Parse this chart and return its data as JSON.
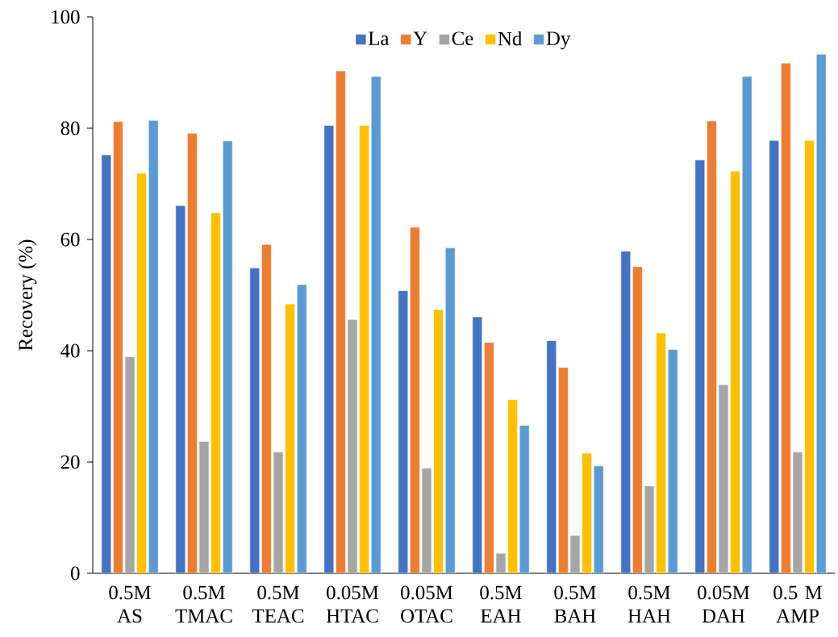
{
  "chart_data": {
    "type": "bar",
    "ylabel": "Recovery (%)",
    "categories": [
      "0.5M AS",
      "0.5M TMAC",
      "0.5M TEAC",
      "0.05M HTAC",
      "0.05M OTAC",
      "0.5M EAH",
      "0.5M BAH",
      "0.5M HAH",
      "0.05M DAH",
      "0.5 M AMP"
    ],
    "series": [
      {
        "name": "La",
        "color": "#4472c4",
        "values": [
          75.2,
          66.1,
          54.9,
          80.5,
          50.8,
          46.1,
          41.8,
          57.9,
          74.3,
          77.8
        ]
      },
      {
        "name": "Y",
        "color": "#ed7d31",
        "values": [
          81.2,
          79.1,
          59.1,
          90.3,
          62.2,
          41.5,
          37.0,
          55.1,
          81.3,
          91.7
        ]
      },
      {
        "name": "Ce",
        "color": "#a5a5a5",
        "values": [
          38.9,
          23.7,
          21.8,
          45.6,
          18.9,
          3.6,
          6.8,
          15.7,
          33.9,
          21.8
        ]
      },
      {
        "name": "Nd",
        "color": "#ffc000",
        "values": [
          71.9,
          64.8,
          48.4,
          80.5,
          47.4,
          31.2,
          21.6,
          43.2,
          72.3,
          77.8
        ]
      },
      {
        "name": "Dy",
        "color": "#5b9bd5",
        "values": [
          81.4,
          77.7,
          51.9,
          89.3,
          58.5,
          26.6,
          19.3,
          40.2,
          89.3,
          93.3
        ]
      }
    ],
    "ylim": [
      0,
      100
    ],
    "yticks": [
      0,
      20,
      40,
      60,
      80,
      100
    ],
    "grid": false,
    "legend": "top"
  }
}
